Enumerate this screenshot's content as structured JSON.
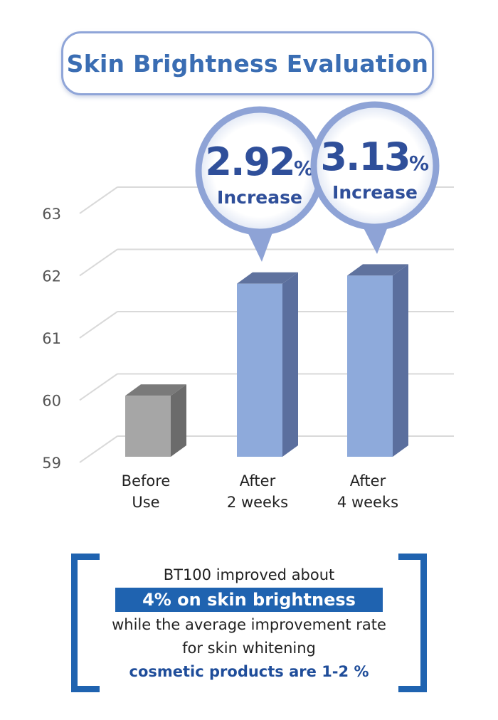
{
  "title": "Skin Brightness Evaluation",
  "chart_data": {
    "type": "bar",
    "categories": [
      [
        "Before",
        "Use"
      ],
      [
        "After",
        "2 weeks"
      ],
      [
        "After",
        "4 weeks"
      ]
    ],
    "values": [
      60.3,
      62.1,
      62.23
    ],
    "yticks": [
      59,
      60,
      61,
      62,
      63
    ],
    "ylim": [
      59,
      63.2
    ],
    "grid": true,
    "colors": {
      "before_front": "#a6a6a6",
      "before_top": "#7a7a7a",
      "before_side": "#6b6b6b",
      "after_front": "#8eaadb",
      "after_top": "#5f729e",
      "after_side": "#5b6f9e"
    },
    "annotations": [
      {
        "category_index": 1,
        "value": "2.92",
        "unit": "%",
        "label": "Increase"
      },
      {
        "category_index": 2,
        "value": "3.13",
        "unit": "%",
        "label": "Increase"
      }
    ]
  },
  "summary": {
    "line1": "BT100 improved about",
    "highlight": "4% on skin brightness",
    "line2": "while the average improvement rate",
    "line3": "for skin whitening",
    "line4": "cosmetic products are 1-2 %"
  }
}
